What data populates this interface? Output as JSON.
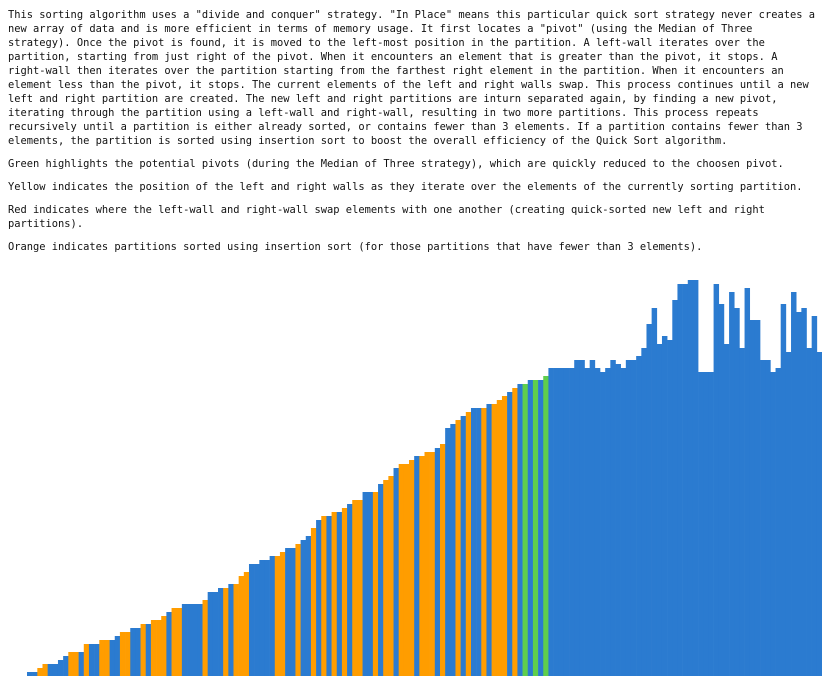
{
  "description_paragraphs": [
    "This sorting algorithm uses a \"divide and conquer\" strategy. \"In Place\" means this particular quick sort strategy never creates a new array of data and is more efficient in terms of memory usage. It first locates a \"pivot\" (using the Median of Three strategy). Once the pivot is found, it is moved to the left-most position in the partition. A left-wall iterates over the partition, starting from just right of the pivot. When it encounters an element that is greater than the pivot, it stops. A right-wall then iterates over the partition starting from the farthest right element in the partition. When it encounters an element less than the pivot, it stops. The current elements of the left and right walls swap. This process continues until a new left and right partition are created. The new left and right partitions are inturn separated again, by finding a new pivot, iterating through the partition using a left-wall and right-wall, resulting in two more partitions. This process repeats recursively until a partition is either already sorted, or contains fewer than 3 elements. If a partition contains fewer than 3 elements, the partition is sorted using insertion sort to boost the overall efficiency of the Quick Sort algorithm.",
    "Green highlights the potential pivots (during the Median of Three strategy), which are quickly reduced to the choosen pivot.",
    "Yellow indicates the position of the left and right walls as they iterate over the elements of the currently sorting partition.",
    "Red indicates where the left-wall and right-wall swap elements with one another (creating quick-sorted new left and right partitions).",
    "Orange indicates partitions sorted using insertion sort (for those partitions that have fewer than 3 elements)."
  ],
  "visualization": {
    "colors": {
      "default": "#2b7bd0",
      "insertion_sorted": "#ff9d00",
      "pivot_candidate": "#5fce4c"
    },
    "bars": [
      {
        "v": 1,
        "s": "default"
      },
      {
        "v": 1,
        "s": "default"
      },
      {
        "v": 2,
        "s": "insertion"
      },
      {
        "v": 3,
        "s": "insertion"
      },
      {
        "v": 3,
        "s": "default"
      },
      {
        "v": 3,
        "s": "default"
      },
      {
        "v": 4,
        "s": "default"
      },
      {
        "v": 5,
        "s": "default"
      },
      {
        "v": 6,
        "s": "insertion"
      },
      {
        "v": 6,
        "s": "insertion"
      },
      {
        "v": 6,
        "s": "default"
      },
      {
        "v": 8,
        "s": "insertion"
      },
      {
        "v": 8,
        "s": "default"
      },
      {
        "v": 8,
        "s": "default"
      },
      {
        "v": 9,
        "s": "insertion"
      },
      {
        "v": 9,
        "s": "insertion"
      },
      {
        "v": 9,
        "s": "default"
      },
      {
        "v": 10,
        "s": "default"
      },
      {
        "v": 11,
        "s": "insertion"
      },
      {
        "v": 11,
        "s": "insertion"
      },
      {
        "v": 12,
        "s": "default"
      },
      {
        "v": 12,
        "s": "default"
      },
      {
        "v": 13,
        "s": "insertion"
      },
      {
        "v": 13,
        "s": "default"
      },
      {
        "v": 14,
        "s": "insertion"
      },
      {
        "v": 14,
        "s": "insertion"
      },
      {
        "v": 15,
        "s": "insertion"
      },
      {
        "v": 16,
        "s": "default"
      },
      {
        "v": 17,
        "s": "insertion"
      },
      {
        "v": 17,
        "s": "insertion"
      },
      {
        "v": 18,
        "s": "default"
      },
      {
        "v": 18,
        "s": "default"
      },
      {
        "v": 18,
        "s": "default"
      },
      {
        "v": 18,
        "s": "default"
      },
      {
        "v": 19,
        "s": "insertion"
      },
      {
        "v": 21,
        "s": "default"
      },
      {
        "v": 21,
        "s": "default"
      },
      {
        "v": 22,
        "s": "default"
      },
      {
        "v": 22,
        "s": "insertion"
      },
      {
        "v": 23,
        "s": "default"
      },
      {
        "v": 23,
        "s": "insertion"
      },
      {
        "v": 25,
        "s": "insertion"
      },
      {
        "v": 26,
        "s": "insertion"
      },
      {
        "v": 28,
        "s": "default"
      },
      {
        "v": 28,
        "s": "default"
      },
      {
        "v": 29,
        "s": "default"
      },
      {
        "v": 29,
        "s": "default"
      },
      {
        "v": 30,
        "s": "default"
      },
      {
        "v": 30,
        "s": "insertion"
      },
      {
        "v": 31,
        "s": "insertion"
      },
      {
        "v": 32,
        "s": "default"
      },
      {
        "v": 32,
        "s": "default"
      },
      {
        "v": 33,
        "s": "insertion"
      },
      {
        "v": 34,
        "s": "default"
      },
      {
        "v": 35,
        "s": "default"
      },
      {
        "v": 37,
        "s": "insertion"
      },
      {
        "v": 39,
        "s": "default"
      },
      {
        "v": 40,
        "s": "insertion"
      },
      {
        "v": 40,
        "s": "default"
      },
      {
        "v": 41,
        "s": "insertion"
      },
      {
        "v": 41,
        "s": "default"
      },
      {
        "v": 42,
        "s": "insertion"
      },
      {
        "v": 43,
        "s": "default"
      },
      {
        "v": 44,
        "s": "insertion"
      },
      {
        "v": 44,
        "s": "insertion"
      },
      {
        "v": 46,
        "s": "default"
      },
      {
        "v": 46,
        "s": "default"
      },
      {
        "v": 46,
        "s": "insertion"
      },
      {
        "v": 48,
        "s": "default"
      },
      {
        "v": 49,
        "s": "insertion"
      },
      {
        "v": 50,
        "s": "insertion"
      },
      {
        "v": 52,
        "s": "default"
      },
      {
        "v": 53,
        "s": "insertion"
      },
      {
        "v": 53,
        "s": "insertion"
      },
      {
        "v": 54,
        "s": "insertion"
      },
      {
        "v": 55,
        "s": "default"
      },
      {
        "v": 55,
        "s": "insertion"
      },
      {
        "v": 56,
        "s": "insertion"
      },
      {
        "v": 56,
        "s": "insertion"
      },
      {
        "v": 57,
        "s": "default"
      },
      {
        "v": 58,
        "s": "insertion"
      },
      {
        "v": 62,
        "s": "default"
      },
      {
        "v": 63,
        "s": "default"
      },
      {
        "v": 64,
        "s": "insertion"
      },
      {
        "v": 65,
        "s": "default"
      },
      {
        "v": 66,
        "s": "insertion"
      },
      {
        "v": 67,
        "s": "default"
      },
      {
        "v": 67,
        "s": "default"
      },
      {
        "v": 67,
        "s": "insertion"
      },
      {
        "v": 68,
        "s": "default"
      },
      {
        "v": 68,
        "s": "insertion"
      },
      {
        "v": 69,
        "s": "insertion"
      },
      {
        "v": 70,
        "s": "insertion"
      },
      {
        "v": 71,
        "s": "default"
      },
      {
        "v": 72,
        "s": "insertion"
      },
      {
        "v": 73,
        "s": "default"
      },
      {
        "v": 73,
        "s": "pivot"
      },
      {
        "v": 74,
        "s": "default"
      },
      {
        "v": 74,
        "s": "pivot"
      },
      {
        "v": 74,
        "s": "default"
      },
      {
        "v": 75,
        "s": "pivot"
      },
      {
        "v": 77,
        "s": "default"
      },
      {
        "v": 77,
        "s": "default"
      },
      {
        "v": 77,
        "s": "default"
      },
      {
        "v": 77,
        "s": "default"
      },
      {
        "v": 77,
        "s": "default"
      },
      {
        "v": 79,
        "s": "default"
      },
      {
        "v": 79,
        "s": "default"
      },
      {
        "v": 77,
        "s": "default"
      },
      {
        "v": 79,
        "s": "default"
      },
      {
        "v": 77,
        "s": "default"
      },
      {
        "v": 76,
        "s": "default"
      },
      {
        "v": 77,
        "s": "default"
      },
      {
        "v": 79,
        "s": "default"
      },
      {
        "v": 78,
        "s": "default"
      },
      {
        "v": 77,
        "s": "default"
      },
      {
        "v": 79,
        "s": "default"
      },
      {
        "v": 79,
        "s": "default"
      },
      {
        "v": 80,
        "s": "default"
      },
      {
        "v": 82,
        "s": "default"
      },
      {
        "v": 88,
        "s": "default"
      },
      {
        "v": 92,
        "s": "default"
      },
      {
        "v": 83,
        "s": "default"
      },
      {
        "v": 85,
        "s": "default"
      },
      {
        "v": 84,
        "s": "default"
      },
      {
        "v": 94,
        "s": "default"
      },
      {
        "v": 98,
        "s": "default"
      },
      {
        "v": 98,
        "s": "default"
      },
      {
        "v": 99,
        "s": "default"
      },
      {
        "v": 99,
        "s": "default"
      },
      {
        "v": 76,
        "s": "default"
      },
      {
        "v": 76,
        "s": "default"
      },
      {
        "v": 76,
        "s": "default"
      },
      {
        "v": 98,
        "s": "default"
      },
      {
        "v": 93,
        "s": "default"
      },
      {
        "v": 83,
        "s": "default"
      },
      {
        "v": 96,
        "s": "default"
      },
      {
        "v": 92,
        "s": "default"
      },
      {
        "v": 82,
        "s": "default"
      },
      {
        "v": 97,
        "s": "default"
      },
      {
        "v": 89,
        "s": "default"
      },
      {
        "v": 89,
        "s": "default"
      },
      {
        "v": 79,
        "s": "default"
      },
      {
        "v": 79,
        "s": "default"
      },
      {
        "v": 76,
        "s": "default"
      },
      {
        "v": 77,
        "s": "default"
      },
      {
        "v": 93,
        "s": "default"
      },
      {
        "v": 81,
        "s": "default"
      },
      {
        "v": 96,
        "s": "default"
      },
      {
        "v": 91,
        "s": "default"
      },
      {
        "v": 92,
        "s": "default"
      },
      {
        "v": 82,
        "s": "default"
      },
      {
        "v": 90,
        "s": "default"
      },
      {
        "v": 81,
        "s": "default"
      }
    ]
  }
}
